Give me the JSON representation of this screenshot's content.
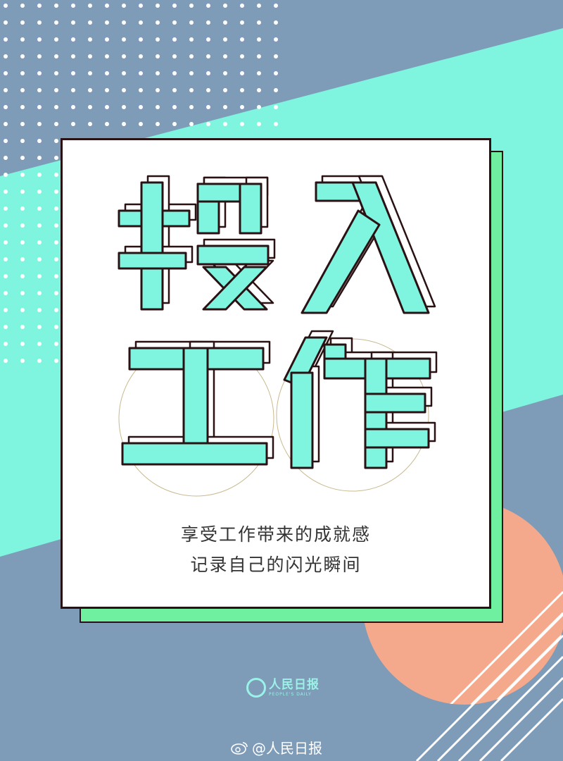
{
  "headline": {
    "chars": [
      "投",
      "入",
      "工",
      "作"
    ]
  },
  "taglines": [
    "享受工作带来的成就感",
    "记录自己的闪光瞬间"
  ],
  "logo": {
    "name_cn": "人民日报",
    "name_en": "PEOPLE'S DAILY"
  },
  "watermark": {
    "icon": "weibo-icon",
    "handle": "@人民日报"
  },
  "colors": {
    "background": "#7e9bb8",
    "mint": "#7ff5e0",
    "green": "#6ef0a0",
    "coral": "#f5a98c",
    "outline": "#2a1214"
  }
}
